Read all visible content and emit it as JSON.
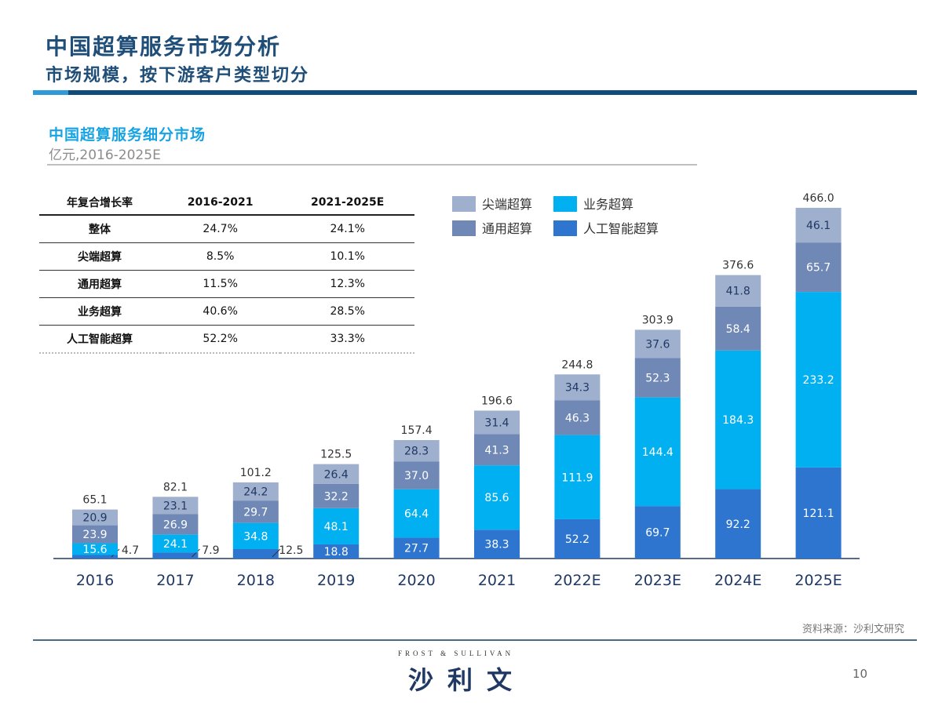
{
  "header": {
    "title": "中国超算服务市场分析",
    "subtitle": "市场规模，按下游客户类型切分"
  },
  "chart_header": {
    "title": "中国超算服务细分市场",
    "unit": "亿元,2016-2025E"
  },
  "cagr_table": {
    "headers": [
      "年复合增长率",
      "2016-2021",
      "2021-2025E"
    ],
    "rows": [
      [
        "整体",
        "24.7%",
        "24.1%"
      ],
      [
        "尖端超算",
        "8.5%",
        "10.1%"
      ],
      [
        "通用超算",
        "11.5%",
        "12.3%"
      ],
      [
        "业务超算",
        "40.6%",
        "28.5%"
      ],
      [
        "人工智能超算",
        "52.2%",
        "33.3%"
      ]
    ]
  },
  "chart_data": {
    "type": "bar",
    "stacked": true,
    "categories": [
      "2016",
      "2017",
      "2018",
      "2019",
      "2020",
      "2021",
      "2022E",
      "2023E",
      "2024E",
      "2025E"
    ],
    "series": [
      {
        "name": "人工智能超算",
        "color": "#2e75d0",
        "values": [
          4.7,
          7.9,
          12.5,
          18.8,
          27.7,
          38.3,
          52.2,
          69.7,
          92.2,
          121.1
        ]
      },
      {
        "name": "业务超算",
        "color": "#00b0f0",
        "values": [
          15.6,
          24.1,
          34.8,
          48.1,
          64.4,
          85.6,
          111.9,
          144.4,
          184.3,
          233.2
        ]
      },
      {
        "name": "通用超算",
        "color": "#7088b5",
        "values": [
          23.9,
          26.9,
          29.7,
          32.2,
          37.0,
          41.3,
          46.3,
          52.3,
          58.4,
          65.7
        ]
      },
      {
        "name": "尖端超算",
        "color": "#9fb0cf",
        "values": [
          20.9,
          23.1,
          24.2,
          26.4,
          28.3,
          31.4,
          34.3,
          37.6,
          41.8,
          46.1
        ]
      }
    ],
    "totals": [
      65.1,
      82.1,
      101.2,
      125.5,
      157.4,
      196.6,
      244.8,
      303.9,
      376.6,
      466.0
    ],
    "legend": [
      "尖端超算",
      "业务超算",
      "通用超算",
      "人工智能超算"
    ],
    "legend_position": "top",
    "grid": false
  },
  "footer": {
    "source": "资料来源：沙利文研究",
    "logo_en": "FROST & SULLIVAN",
    "logo_cn": "沙利文",
    "page": "10"
  }
}
